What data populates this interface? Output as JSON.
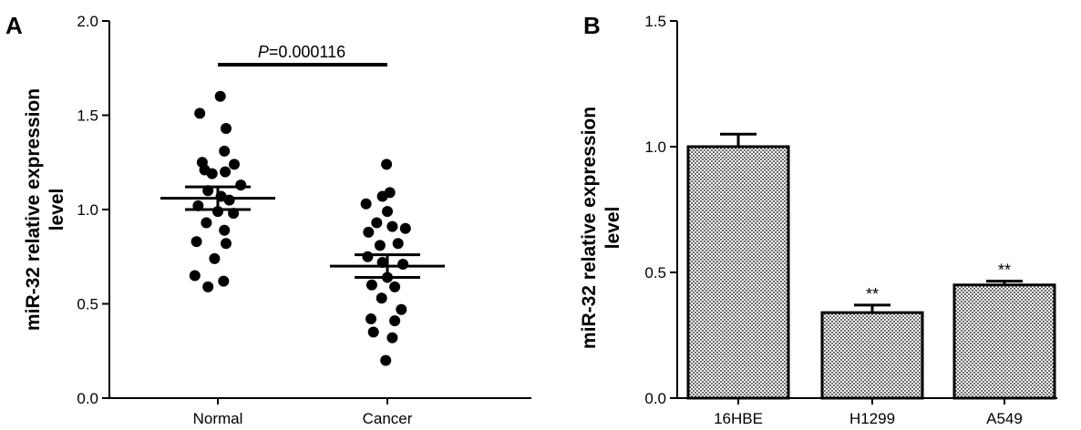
{
  "chart_data": [
    {
      "panel": "A",
      "type": "scatter",
      "ylabel_lines": [
        "miR-32 relative expression",
        "level"
      ],
      "categories": [
        "Normal",
        "Cancer"
      ],
      "ylim": [
        0,
        2.0
      ],
      "yticks": [
        "0.0",
        "0.5",
        "1.0",
        "1.5",
        "2.0"
      ],
      "annotation": {
        "italic": "P",
        "text": "=0.000116"
      },
      "series": [
        {
          "category": "Normal",
          "mean": 1.06,
          "sem": [
            1.0,
            1.12
          ],
          "points": [
            {
              "x": -0.22,
              "y": 1.51
            },
            {
              "x": 0.03,
              "y": 1.6
            },
            {
              "x": 0.1,
              "y": 1.43
            },
            {
              "x": -0.19,
              "y": 1.25
            },
            {
              "x": 0.08,
              "y": 1.31
            },
            {
              "x": -0.16,
              "y": 1.21
            },
            {
              "x": -0.07,
              "y": 1.19
            },
            {
              "x": 0.09,
              "y": 1.2
            },
            {
              "x": 0.2,
              "y": 1.24
            },
            {
              "x": 0.28,
              "y": 1.13
            },
            {
              "x": -0.12,
              "y": 1.1
            },
            {
              "x": 0.04,
              "y": 1.07
            },
            {
              "x": 0.14,
              "y": 1.05
            },
            {
              "x": -0.24,
              "y": 1.02
            },
            {
              "x": 0.0,
              "y": 0.99
            },
            {
              "x": 0.19,
              "y": 0.98
            },
            {
              "x": -0.14,
              "y": 0.93
            },
            {
              "x": 0.08,
              "y": 0.89
            },
            {
              "x": 0.1,
              "y": 0.82
            },
            {
              "x": -0.26,
              "y": 0.83
            },
            {
              "x": -0.04,
              "y": 0.74
            },
            {
              "x": -0.28,
              "y": 0.65
            },
            {
              "x": 0.07,
              "y": 0.62
            },
            {
              "x": -0.12,
              "y": 0.59
            }
          ]
        },
        {
          "category": "Cancer",
          "mean": 0.7,
          "sem": [
            0.64,
            0.76
          ],
          "points": [
            {
              "x": -0.01,
              "y": 1.24
            },
            {
              "x": -0.06,
              "y": 1.07
            },
            {
              "x": 0.03,
              "y": 1.09
            },
            {
              "x": -0.26,
              "y": 1.03
            },
            {
              "x": 0.0,
              "y": 0.99
            },
            {
              "x": -0.13,
              "y": 0.93
            },
            {
              "x": -0.23,
              "y": 0.88
            },
            {
              "x": 0.06,
              "y": 0.91
            },
            {
              "x": 0.22,
              "y": 0.9
            },
            {
              "x": -0.09,
              "y": 0.81
            },
            {
              "x": 0.13,
              "y": 0.82
            },
            {
              "x": -0.24,
              "y": 0.75
            },
            {
              "x": -0.06,
              "y": 0.72
            },
            {
              "x": 0.19,
              "y": 0.71
            },
            {
              "x": 0.0,
              "y": 0.64
            },
            {
              "x": -0.19,
              "y": 0.6
            },
            {
              "x": 0.09,
              "y": 0.59
            },
            {
              "x": -0.07,
              "y": 0.53
            },
            {
              "x": 0.17,
              "y": 0.47
            },
            {
              "x": -0.2,
              "y": 0.42
            },
            {
              "x": 0.09,
              "y": 0.41
            },
            {
              "x": -0.17,
              "y": 0.35
            },
            {
              "x": 0.06,
              "y": 0.32
            },
            {
              "x": -0.02,
              "y": 0.2
            }
          ]
        }
      ]
    },
    {
      "panel": "B",
      "type": "bar",
      "ylabel_lines": [
        "miR-32 relative expression",
        "level"
      ],
      "categories": [
        "16HBE",
        "H1299",
        "A549"
      ],
      "values": [
        1.0,
        0.34,
        0.45
      ],
      "errors": [
        0.05,
        0.03,
        0.015
      ],
      "significance": [
        "",
        "**",
        "**"
      ],
      "ylim": [
        0,
        1.5
      ],
      "yticks": [
        "0.0",
        "0.5",
        "1.0",
        "1.5"
      ]
    }
  ]
}
